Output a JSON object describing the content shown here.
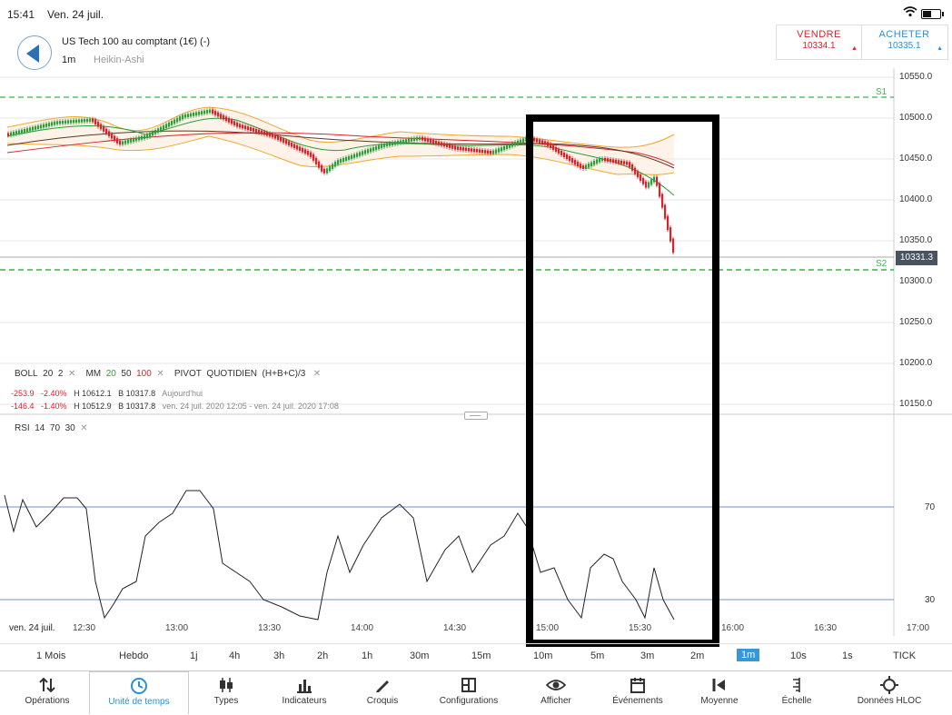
{
  "status": {
    "time": "15:41",
    "date": "Ven. 24 juil."
  },
  "instrument": {
    "name": "US Tech 100 au comptant (1€) (-)",
    "period": "1m",
    "chart_type": "Heikin-Ashi"
  },
  "trade": {
    "sell": {
      "label": "VENDRE",
      "price": "10334.1",
      "color": "#d9222a"
    },
    "buy": {
      "label": "ACHETER",
      "price": "10335.1",
      "color": "#2a8fd6"
    }
  },
  "price_axis": [
    "10550.0",
    "10500.0",
    "10450.0",
    "10400.0",
    "10350.0",
    "10300.0",
    "10250.0",
    "10200.0",
    "10150.0"
  ],
  "current_price": "10331.3",
  "pivots": {
    "s1": "S1",
    "s2": "S2"
  },
  "indicators": {
    "boll_label": "BOLL",
    "boll_p1": "20",
    "boll_p2": "2",
    "mm_label": "MM",
    "mm_p1": "20",
    "mm_p2": "50",
    "mm_p3": "100",
    "pivot_label": "PIVOT",
    "pivot_type": "QUOTIDIEN",
    "pivot_formula": "(H+B+C)/3",
    "remove_symbol": "✕"
  },
  "stats": {
    "row1": {
      "change": "-253.9",
      "pct": "-2.40%",
      "high": "H 10612.1",
      "low": "B 10317.8",
      "range": "Aujourd'hui"
    },
    "row2": {
      "change": "-146.4",
      "pct": "-1.40%",
      "high": "H 10512.9",
      "low": "B 10317.8",
      "range": "ven. 24 juil. 2020 12:05 - ven. 24 juil. 2020 17:08"
    }
  },
  "rsi": {
    "label": "RSI",
    "p1": "14",
    "p2": "70",
    "p3": "30",
    "level_high": "70",
    "level_low": "30"
  },
  "time_axis": {
    "date": "ven. 24 juil.",
    "labels": [
      "12:30",
      "13:00",
      "13:30",
      "14:00",
      "14:30",
      "15:00",
      "15:30",
      "16:00",
      "16:30",
      "17:00"
    ]
  },
  "timeframes": [
    "1 Mois",
    "Hebdo",
    "1j",
    "4h",
    "3h",
    "2h",
    "1h",
    "30m",
    "15m",
    "10m",
    "5m",
    "3m",
    "2m",
    "1m",
    "10s",
    "1s",
    "TICK"
  ],
  "active_timeframe": "1m",
  "tabs": [
    "Opérations",
    "Unité de temps",
    "Types",
    "Indicateurs",
    "Croquis",
    "Configurations",
    "Afficher",
    "Événements",
    "Moyenne",
    "Échelle",
    "Données HLOC"
  ],
  "active_tab": "Unité de temps",
  "colors": {
    "up": "#2c9e3b",
    "down": "#d9222a",
    "boll": "#f0a830",
    "pivot": "#3cb44b",
    "rsi_level": "#9fb7d6",
    "accent": "#3498db"
  }
}
